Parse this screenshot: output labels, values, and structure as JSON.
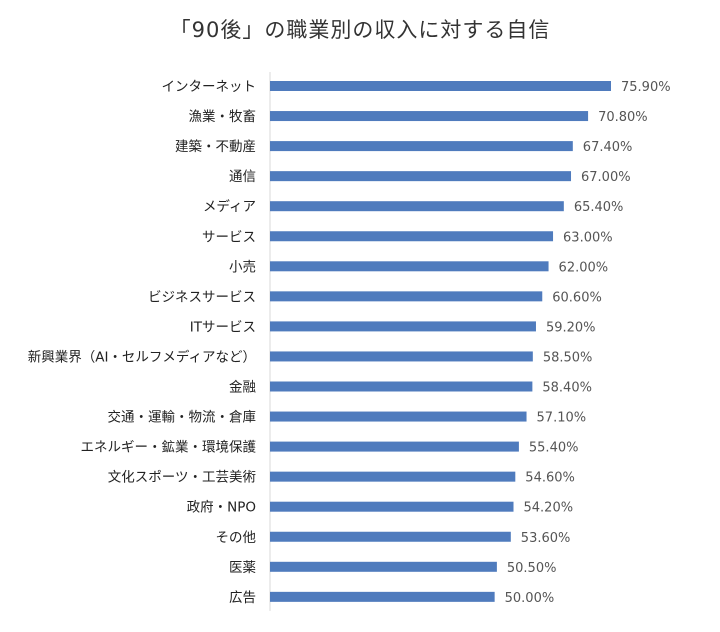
{
  "chart_data": {
    "type": "bar",
    "orientation": "horizontal",
    "title": "「90後」の職業別の収入に対する自信",
    "categories": [
      "インターネット",
      "漁業・牧畜",
      "建築・不動産",
      "通信",
      "メディア",
      "サービス",
      "小売",
      "ビジネスサービス",
      "ITサービス",
      "新興業界（AI・セルフメディアなど）",
      "金融",
      "交通・運輸・物流・倉庫",
      "エネルギー・鉱業・環境保護",
      "文化スポーツ・工芸美術",
      "政府・NPO",
      "その他",
      "医薬",
      "広告"
    ],
    "values": [
      75.9,
      70.8,
      67.4,
      67.0,
      65.4,
      63.0,
      62.0,
      60.6,
      59.2,
      58.5,
      58.4,
      57.1,
      55.4,
      54.6,
      54.2,
      53.6,
      50.5,
      50.0
    ],
    "value_labels": [
      "75.90%",
      "70.80%",
      "67.40%",
      "67.00%",
      "65.40%",
      "63.00%",
      "62.00%",
      "60.60%",
      "59.20%",
      "58.50%",
      "58.40%",
      "57.10%",
      "55.40%",
      "54.60%",
      "54.20%",
      "53.60%",
      "50.50%",
      "50.00%"
    ],
    "bar_color": "#4f7bbd",
    "grid": false,
    "legend": "none"
  }
}
